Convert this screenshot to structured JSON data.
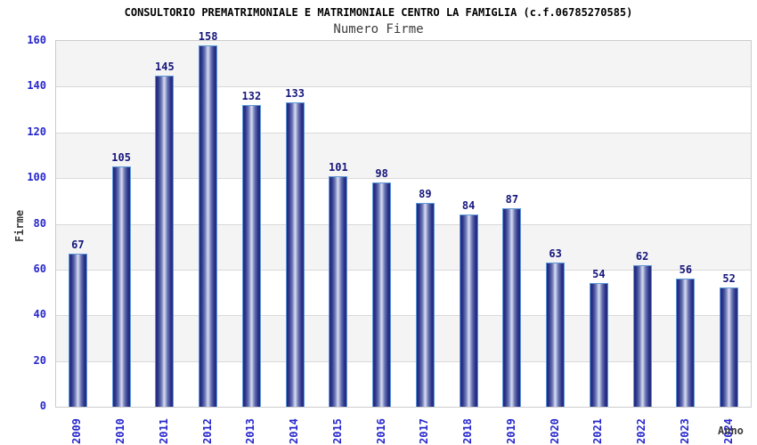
{
  "title": "CONSULTORIO PREMATRIMONIALE E MATRIMONIALE CENTRO LA FAMIGLIA (c.f.06785270585)",
  "subtitle": "Numero Firme",
  "chart_data": {
    "type": "bar",
    "title": "CONSULTORIO PREMATRIMONIALE E MATRIMONIALE CENTRO LA FAMIGLIA (c.f.06785270585)",
    "subtitle": "Numero Firme",
    "categories": [
      "2009",
      "2010",
      "2011",
      "2012",
      "2013",
      "2014",
      "2015",
      "2016",
      "2017",
      "2018",
      "2019",
      "2020",
      "2021",
      "2022",
      "2023",
      "2024"
    ],
    "values": [
      67,
      105,
      145,
      158,
      132,
      133,
      101,
      98,
      89,
      84,
      87,
      63,
      54,
      62,
      56,
      52
    ],
    "xlabel": "Anno",
    "ylabel": "Firme",
    "ylim": [
      0,
      160
    ],
    "ytick_step": 20,
    "yticks": [
      0,
      20,
      40,
      60,
      80,
      100,
      120,
      140,
      160
    ],
    "grid": true,
    "legend_position": "none",
    "colors": {
      "bar_edge": "#232a80",
      "bar_center": "#dadef2",
      "bar_border": "#5f9ad8",
      "value_label": "#16167c",
      "tick_label": "#2626cd",
      "axis_title": "#3a3a3a",
      "band_gray": "#f4f4f4",
      "band_white": "#ffffff",
      "plot_border": "#cccccc"
    }
  }
}
